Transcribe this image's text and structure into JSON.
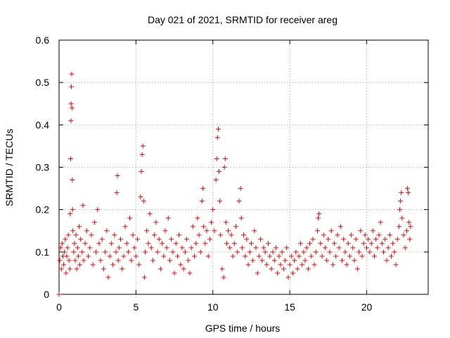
{
  "chart_data": {
    "type": "scatter",
    "title": "Day 021 of 2021, SRMTID for receiver areg",
    "xlabel": "GPS time / hours",
    "ylabel": "SRMTID / TECUs",
    "xlim": [
      0,
      24
    ],
    "ylim": [
      0,
      0.6
    ],
    "xticks": [
      0,
      5,
      10,
      15,
      20
    ],
    "xtick_labels": [
      "0",
      "5",
      "10",
      "15",
      "20"
    ],
    "yticks": [
      0,
      0.1,
      0.2,
      0.3,
      0.4,
      0.5,
      0.6
    ],
    "ytick_labels": [
      "0",
      "0.1",
      "0.2",
      "0.3",
      "0.4",
      "0.5",
      "0.6"
    ],
    "grid": true,
    "marker": "plus",
    "color": "#ff0000",
    "series": [
      {
        "name": "SRMTID",
        "points": [
          [
            0.0,
            0.0
          ],
          [
            0.05,
            0.08
          ],
          [
            0.1,
            0.11
          ],
          [
            0.15,
            0.06
          ],
          [
            0.2,
            0.12
          ],
          [
            0.25,
            0.09
          ],
          [
            0.3,
            0.07
          ],
          [
            0.35,
            0.1
          ],
          [
            0.4,
            0.13
          ],
          [
            0.45,
            0.05
          ],
          [
            0.5,
            0.09
          ],
          [
            0.55,
            0.11
          ],
          [
            0.6,
            0.14
          ],
          [
            0.65,
            0.08
          ],
          [
            0.7,
            0.06
          ],
          [
            0.72,
            0.19
          ],
          [
            0.75,
            0.32
          ],
          [
            0.77,
            0.41
          ],
          [
            0.78,
            0.45
          ],
          [
            0.8,
            0.49
          ],
          [
            0.82,
            0.52
          ],
          [
            0.84,
            0.44
          ],
          [
            0.86,
            0.27
          ],
          [
            0.88,
            0.2
          ],
          [
            0.9,
            0.15
          ],
          [
            0.95,
            0.1
          ],
          [
            1.0,
            0.12
          ],
          [
            1.05,
            0.08
          ],
          [
            1.1,
            0.14
          ],
          [
            1.15,
            0.06
          ],
          [
            1.2,
            0.11
          ],
          [
            1.25,
            0.09
          ],
          [
            1.3,
            0.16
          ],
          [
            1.35,
            0.07
          ],
          [
            1.4,
            0.13
          ],
          [
            1.5,
            0.1
          ],
          [
            1.55,
            0.21
          ],
          [
            1.6,
            0.08
          ],
          [
            1.7,
            0.12
          ],
          [
            1.8,
            0.15
          ],
          [
            1.9,
            0.09
          ],
          [
            2.0,
            0.11
          ],
          [
            2.1,
            0.14
          ],
          [
            2.2,
            0.07
          ],
          [
            2.3,
            0.17
          ],
          [
            2.4,
            0.1
          ],
          [
            2.5,
            0.2
          ],
          [
            2.6,
            0.12
          ],
          [
            2.7,
            0.08
          ],
          [
            2.8,
            0.13
          ],
          [
            2.9,
            0.06
          ],
          [
            3.0,
            0.1
          ],
          [
            3.1,
            0.15
          ],
          [
            3.2,
            0.04
          ],
          [
            3.3,
            0.09
          ],
          [
            3.4,
            0.12
          ],
          [
            3.5,
            0.07
          ],
          [
            3.6,
            0.14
          ],
          [
            3.7,
            0.1
          ],
          [
            3.75,
            0.24
          ],
          [
            3.8,
            0.28
          ],
          [
            3.85,
            0.08
          ],
          [
            3.9,
            0.11
          ],
          [
            4.0,
            0.13
          ],
          [
            4.1,
            0.06
          ],
          [
            4.2,
            0.09
          ],
          [
            4.3,
            0.16
          ],
          [
            4.4,
            0.12
          ],
          [
            4.5,
            0.1
          ],
          [
            4.6,
            0.18
          ],
          [
            4.7,
            0.08
          ],
          [
            4.8,
            0.14
          ],
          [
            4.9,
            0.11
          ],
          [
            5.0,
            0.09
          ],
          [
            5.1,
            0.13
          ],
          [
            5.2,
            0.07
          ],
          [
            5.3,
            0.23
          ],
          [
            5.35,
            0.29
          ],
          [
            5.4,
            0.33
          ],
          [
            5.45,
            0.35
          ],
          [
            5.5,
            0.22
          ],
          [
            5.55,
            0.04
          ],
          [
            5.6,
            0.1
          ],
          [
            5.7,
            0.15
          ],
          [
            5.8,
            0.12
          ],
          [
            5.9,
            0.19
          ],
          [
            6.0,
            0.11
          ],
          [
            6.1,
            0.08
          ],
          [
            6.2,
            0.14
          ],
          [
            6.3,
            0.17
          ],
          [
            6.4,
            0.1
          ],
          [
            6.5,
            0.13
          ],
          [
            6.6,
            0.06
          ],
          [
            6.7,
            0.12
          ],
          [
            6.8,
            0.09
          ],
          [
            6.9,
            0.15
          ],
          [
            7.0,
            0.11
          ],
          [
            7.1,
            0.18
          ],
          [
            7.2,
            0.08
          ],
          [
            7.3,
            0.13
          ],
          [
            7.4,
            0.1
          ],
          [
            7.5,
            0.05
          ],
          [
            7.6,
            0.12
          ],
          [
            7.7,
            0.09
          ],
          [
            7.8,
            0.14
          ],
          [
            7.9,
            0.07
          ],
          [
            8.0,
            0.11
          ],
          [
            8.1,
            0.06
          ],
          [
            8.2,
            0.1
          ],
          [
            8.3,
            0.13
          ],
          [
            8.4,
            0.08
          ],
          [
            8.5,
            0.05
          ],
          [
            8.6,
            0.11
          ],
          [
            8.7,
            0.16
          ],
          [
            8.8,
            0.09
          ],
          [
            8.9,
            0.12
          ],
          [
            9.0,
            0.18
          ],
          [
            9.1,
            0.14
          ],
          [
            9.2,
            0.1
          ],
          [
            9.3,
            0.22
          ],
          [
            9.35,
            0.25
          ],
          [
            9.4,
            0.16
          ],
          [
            9.5,
            0.12
          ],
          [
            9.6,
            0.15
          ],
          [
            9.7,
            0.09
          ],
          [
            9.8,
            0.13
          ],
          [
            9.9,
            0.17
          ],
          [
            10.0,
            0.2
          ],
          [
            10.1,
            0.15
          ],
          [
            10.2,
            0.27
          ],
          [
            10.25,
            0.32
          ],
          [
            10.3,
            0.37
          ],
          [
            10.35,
            0.39
          ],
          [
            10.4,
            0.29
          ],
          [
            10.45,
            0.22
          ],
          [
            10.5,
            0.14
          ],
          [
            10.6,
            0.06
          ],
          [
            10.7,
            0.04
          ],
          [
            10.75,
            0.3
          ],
          [
            10.8,
            0.32
          ],
          [
            10.85,
            0.17
          ],
          [
            10.9,
            0.12
          ],
          [
            11.0,
            0.15
          ],
          [
            11.1,
            0.11
          ],
          [
            11.2,
            0.14
          ],
          [
            11.3,
            0.09
          ],
          [
            11.4,
            0.12
          ],
          [
            11.5,
            0.16
          ],
          [
            11.6,
            0.1
          ],
          [
            11.7,
            0.22
          ],
          [
            11.8,
            0.25
          ],
          [
            11.85,
            0.18
          ],
          [
            11.9,
            0.11
          ],
          [
            12.0,
            0.14
          ],
          [
            12.1,
            0.09
          ],
          [
            12.2,
            0.13
          ],
          [
            12.3,
            0.07
          ],
          [
            12.4,
            0.1
          ],
          [
            12.5,
            0.12
          ],
          [
            12.6,
            0.08
          ],
          [
            12.7,
            0.15
          ],
          [
            12.8,
            0.11
          ],
          [
            12.9,
            0.05
          ],
          [
            13.0,
            0.09
          ],
          [
            13.1,
            0.13
          ],
          [
            13.2,
            0.08
          ],
          [
            13.3,
            0.11
          ],
          [
            13.4,
            0.1
          ],
          [
            13.5,
            0.07
          ],
          [
            13.6,
            0.12
          ],
          [
            13.7,
            0.09
          ],
          [
            13.8,
            0.06
          ],
          [
            13.9,
            0.1
          ],
          [
            14.0,
            0.08
          ],
          [
            14.1,
            0.11
          ],
          [
            14.2,
            0.05
          ],
          [
            14.3,
            0.09
          ],
          [
            14.4,
            0.07
          ],
          [
            14.5,
            0.1
          ],
          [
            14.6,
            0.06
          ],
          [
            14.7,
            0.08
          ],
          [
            14.8,
            0.11
          ],
          [
            14.9,
            0.04
          ],
          [
            15.0,
            0.07
          ],
          [
            15.1,
            0.09
          ],
          [
            15.2,
            0.05
          ],
          [
            15.3,
            0.08
          ],
          [
            15.4,
            0.1
          ],
          [
            15.5,
            0.06
          ],
          [
            15.6,
            0.09
          ],
          [
            15.7,
            0.12
          ],
          [
            15.8,
            0.07
          ],
          [
            15.9,
            0.1
          ],
          [
            16.0,
            0.08
          ],
          [
            16.1,
            0.11
          ],
          [
            16.2,
            0.06
          ],
          [
            16.3,
            0.12
          ],
          [
            16.4,
            0.09
          ],
          [
            16.5,
            0.13
          ],
          [
            16.6,
            0.07
          ],
          [
            16.7,
            0.1
          ],
          [
            16.8,
            0.15
          ],
          [
            16.85,
            0.18
          ],
          [
            16.9,
            0.19
          ],
          [
            17.0,
            0.12
          ],
          [
            17.1,
            0.09
          ],
          [
            17.2,
            0.14
          ],
          [
            17.3,
            0.11
          ],
          [
            17.4,
            0.08
          ],
          [
            17.5,
            0.13
          ],
          [
            17.6,
            0.1
          ],
          [
            17.7,
            0.15
          ],
          [
            17.8,
            0.07
          ],
          [
            17.9,
            0.12
          ],
          [
            18.0,
            0.09
          ],
          [
            18.1,
            0.14
          ],
          [
            18.2,
            0.11
          ],
          [
            18.3,
            0.16
          ],
          [
            18.4,
            0.08
          ],
          [
            18.5,
            0.13
          ],
          [
            18.6,
            0.1
          ],
          [
            18.7,
            0.07
          ],
          [
            18.8,
            0.12
          ],
          [
            18.9,
            0.09
          ],
          [
            19.0,
            0.14
          ],
          [
            19.1,
            0.11
          ],
          [
            19.2,
            0.08
          ],
          [
            19.3,
            0.13
          ],
          [
            19.4,
            0.06
          ],
          [
            19.5,
            0.1
          ],
          [
            19.6,
            0.15
          ],
          [
            19.7,
            0.09
          ],
          [
            19.8,
            0.12
          ],
          [
            19.9,
            0.14
          ],
          [
            20.0,
            0.11
          ],
          [
            20.1,
            0.13
          ],
          [
            20.2,
            0.1
          ],
          [
            20.3,
            0.12
          ],
          [
            20.4,
            0.15
          ],
          [
            20.5,
            0.09
          ],
          [
            20.6,
            0.13
          ],
          [
            20.7,
            0.11
          ],
          [
            20.8,
            0.14
          ],
          [
            20.9,
            0.17
          ],
          [
            21.0,
            0.12
          ],
          [
            21.1,
            0.1
          ],
          [
            21.2,
            0.13
          ],
          [
            21.3,
            0.08
          ],
          [
            21.4,
            0.11
          ],
          [
            21.5,
            0.14
          ],
          [
            21.6,
            0.09
          ],
          [
            21.7,
            0.12
          ],
          [
            21.8,
            0.1
          ],
          [
            21.9,
            0.07
          ],
          [
            22.0,
            0.13
          ],
          [
            22.1,
            0.16
          ],
          [
            22.15,
            0.2
          ],
          [
            22.2,
            0.22
          ],
          [
            22.25,
            0.24
          ],
          [
            22.3,
            0.18
          ],
          [
            22.4,
            0.14
          ],
          [
            22.5,
            0.11
          ],
          [
            22.6,
            0.15
          ],
          [
            22.65,
            0.25
          ],
          [
            22.7,
            0.24
          ],
          [
            22.75,
            0.17
          ],
          [
            22.8,
            0.13
          ],
          [
            22.85,
            0.16
          ]
        ]
      }
    ]
  }
}
